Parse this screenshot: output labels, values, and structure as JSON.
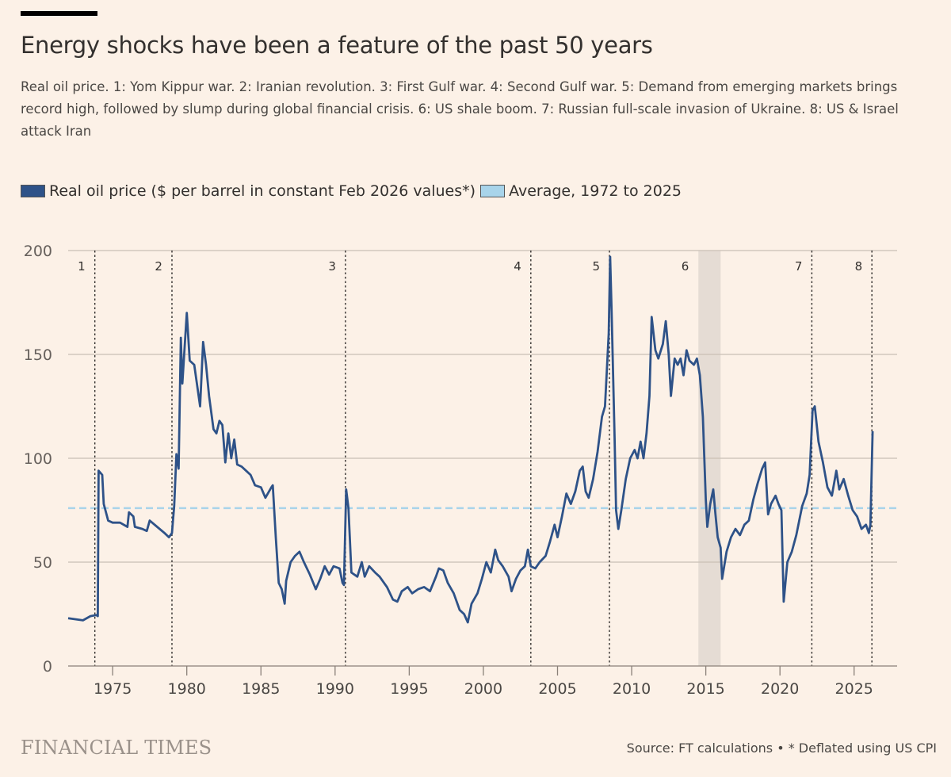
{
  "header": {
    "title": "Energy shocks have been a feature of the past 50 years",
    "subtitle": "Real oil price. 1: Yom Kippur war. 2: Iranian revolution. 3: First Gulf war. 4: Second Gulf war. 5: Demand from emerging markets brings record high, followed by slump during global financial crisis. 6: US shale boom. 7: Russian full-scale invasion of Ukraine. 8: US & Israel attack Iran"
  },
  "legend": [
    {
      "label": "Real oil price ($ per barrel in constant Feb 2026 values*)",
      "color": "#2e5288"
    },
    {
      "label": "Average, 1972 to 2025",
      "color": "#a8d4ea"
    }
  ],
  "footer": {
    "logo": "FINANCIAL TIMES",
    "source": "Source: FT calculations • * Deflated using US CPI"
  },
  "chart_data": {
    "type": "line",
    "title": "Energy shocks have been a feature of the past 50 years",
    "xlabel": "",
    "ylabel": "",
    "xlim": [
      1972.0,
      2027.9
    ],
    "ylim": [
      0,
      200
    ],
    "yticks": [
      0,
      50,
      100,
      150,
      200
    ],
    "xticks": [
      1975,
      1980,
      1985,
      1990,
      1995,
      2000,
      2005,
      2010,
      2015,
      2020,
      2025
    ],
    "grid": true,
    "legend_position": "top-left",
    "colors": {
      "series": "#2e5288",
      "average": "#a8d4ea",
      "shade": "#e5dcd4",
      "grid": "#c9bfb5",
      "event": "#33302e"
    },
    "average": {
      "name": "Average, 1972 to 2025",
      "value": 76
    },
    "shaded_periods": [
      {
        "label": "6",
        "start": 2014.5,
        "end": 2016.0
      }
    ],
    "events": [
      {
        "label": "1",
        "x": 1973.8
      },
      {
        "label": "2",
        "x": 1979.0
      },
      {
        "label": "3",
        "x": 1990.7
      },
      {
        "label": "4",
        "x": 2003.2
      },
      {
        "label": "5",
        "x": 2008.5
      },
      {
        "label": "7",
        "x": 2022.15
      },
      {
        "label": "8",
        "x": 2026.2
      }
    ],
    "series": [
      {
        "name": "Real oil price ($ per barrel in constant Feb 2026 values*)",
        "x": [
          1972.0,
          1973.0,
          1973.5,
          1973.9,
          1974.0,
          1974.05,
          1974.3,
          1974.4,
          1974.7,
          1975.0,
          1975.5,
          1976.0,
          1976.1,
          1976.4,
          1976.5,
          1977.0,
          1977.3,
          1977.5,
          1978.0,
          1978.5,
          1978.8,
          1979.0,
          1979.15,
          1979.3,
          1979.45,
          1979.6,
          1979.7,
          1980.0,
          1980.2,
          1980.5,
          1980.9,
          1981.1,
          1981.3,
          1981.5,
          1981.8,
          1982.0,
          1982.2,
          1982.4,
          1982.6,
          1982.8,
          1983.0,
          1983.2,
          1983.4,
          1983.7,
          1984.0,
          1984.3,
          1984.6,
          1985.0,
          1985.3,
          1985.7,
          1985.8,
          1986.0,
          1986.2,
          1986.4,
          1986.6,
          1986.7,
          1987.0,
          1987.3,
          1987.6,
          1987.9,
          1988.3,
          1988.7,
          1989.0,
          1989.3,
          1989.6,
          1989.9,
          1990.3,
          1990.5,
          1990.6,
          1990.75,
          1990.9,
          1991.1,
          1991.5,
          1991.8,
          1992.0,
          1992.3,
          1992.7,
          1993.0,
          1993.5,
          1993.9,
          1994.2,
          1994.5,
          1994.9,
          1995.2,
          1995.6,
          1996.0,
          1996.4,
          1996.8,
          1997.0,
          1997.3,
          1997.6,
          1998.0,
          1998.4,
          1998.7,
          1998.95,
          1999.2,
          1999.6,
          1999.9,
          2000.2,
          2000.5,
          2000.8,
          2001.0,
          2001.3,
          2001.7,
          2001.9,
          2002.2,
          2002.5,
          2002.8,
          2003.0,
          2003.2,
          2003.5,
          2003.8,
          2004.2,
          2004.5,
          2004.8,
          2005.0,
          2005.3,
          2005.6,
          2005.9,
          2006.2,
          2006.5,
          2006.7,
          2006.9,
          2007.1,
          2007.4,
          2007.7,
          2008.0,
          2008.2,
          2008.45,
          2008.55,
          2008.65,
          2008.85,
          2008.95,
          2009.1,
          2009.3,
          2009.6,
          2009.9,
          2010.2,
          2010.4,
          2010.6,
          2010.8,
          2011.0,
          2011.2,
          2011.35,
          2011.6,
          2011.8,
          2012.1,
          2012.3,
          2012.5,
          2012.65,
          2012.9,
          2013.1,
          2013.3,
          2013.5,
          2013.7,
          2013.9,
          2014.2,
          2014.4,
          2014.6,
          2014.8,
          2015.0,
          2015.1,
          2015.3,
          2015.5,
          2015.65,
          2015.8,
          2016.0,
          2016.1,
          2016.4,
          2016.7,
          2017.0,
          2017.3,
          2017.6,
          2017.9,
          2018.2,
          2018.5,
          2018.8,
          2019.0,
          2019.2,
          2019.4,
          2019.7,
          2019.9,
          2020.1,
          2020.25,
          2020.5,
          2020.8,
          2021.1,
          2021.5,
          2021.8,
          2022.0,
          2022.2,
          2022.35,
          2022.6,
          2022.9,
          2023.2,
          2023.5,
          2023.8,
          2024.0,
          2024.3,
          2024.6,
          2024.9,
          2025.2,
          2025.5,
          2025.8,
          2026.0,
          2026.1,
          2026.25
        ],
        "values": [
          23,
          22,
          24,
          24.5,
          24,
          94,
          92,
          78,
          70,
          69,
          69,
          67,
          74,
          72,
          67,
          66,
          65,
          70,
          67,
          64,
          62,
          64,
          77,
          102,
          95,
          158,
          136,
          170,
          147,
          145,
          125,
          156,
          145,
          130,
          114,
          112,
          118,
          116,
          98,
          112,
          100,
          109,
          97,
          96,
          94,
          92,
          87,
          86,
          81,
          86,
          87,
          62,
          40,
          37,
          30,
          41,
          50,
          53,
          55,
          50,
          44,
          37,
          42,
          48,
          44,
          48,
          47,
          40,
          39,
          85,
          76,
          45,
          43,
          50,
          43,
          48,
          45,
          43,
          38,
          32,
          31,
          36,
          38,
          35,
          37,
          38,
          36,
          43,
          47,
          46,
          40,
          35,
          27,
          25,
          21,
          30,
          35,
          42,
          50,
          45,
          56,
          51,
          48,
          43,
          36,
          42,
          46,
          48,
          56,
          48,
          47,
          50,
          53,
          60,
          68,
          62,
          72,
          83,
          78,
          84,
          94,
          96,
          84,
          81,
          90,
          103,
          120,
          125,
          160,
          197,
          170,
          110,
          75,
          66,
          75,
          90,
          100,
          104,
          100,
          108,
          100,
          112,
          130,
          168,
          152,
          148,
          155,
          166,
          150,
          130,
          148,
          145,
          148,
          140,
          152,
          147,
          145,
          148,
          140,
          120,
          80,
          67,
          78,
          85,
          73,
          62,
          57,
          42,
          55,
          62,
          66,
          63,
          68,
          70,
          80,
          88,
          95,
          98,
          73,
          78,
          82,
          78,
          75,
          31,
          50,
          55,
          63,
          77,
          83,
          92,
          123,
          125,
          108,
          98,
          86,
          82,
          94,
          85,
          90,
          82,
          75,
          72,
          66,
          68,
          64,
          68,
          113
        ]
      }
    ]
  }
}
